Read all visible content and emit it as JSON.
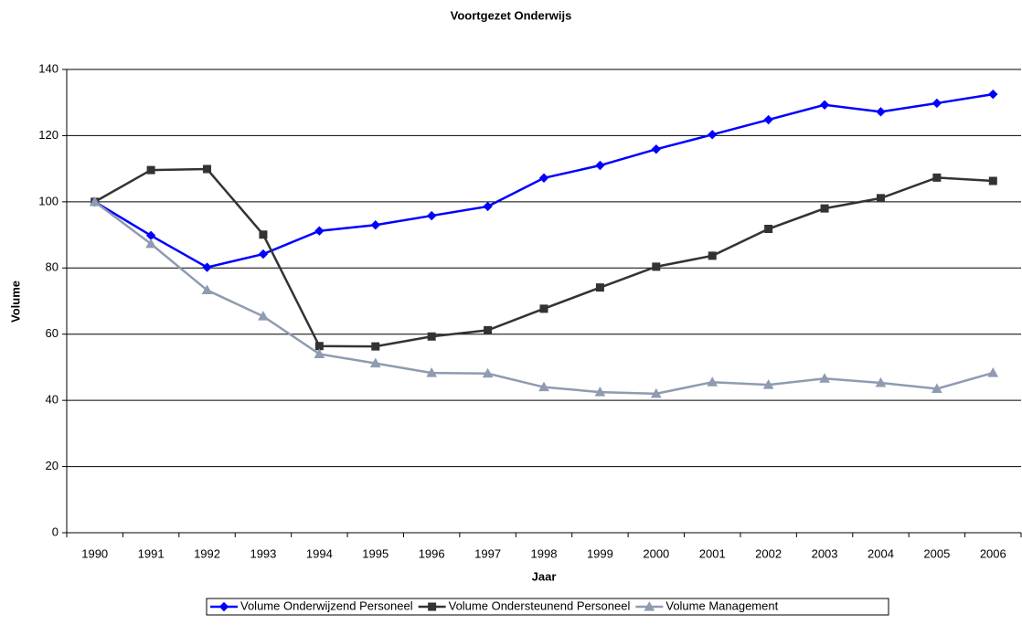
{
  "chart_data": {
    "type": "line",
    "title": "Voortgezet Onderwijs",
    "x_label": "Jaar",
    "y_label": "Volume",
    "categories": [
      "1990",
      "1991",
      "1992",
      "1993",
      "1994",
      "1995",
      "1996",
      "1997",
      "1998",
      "1999",
      "2000",
      "2001",
      "2002",
      "2003",
      "2004",
      "2005",
      "2006"
    ],
    "series": [
      {
        "name": "Volume Onderwijzend Personeel",
        "color": "#0000ff",
        "marker": "diamond",
        "values": [
          100,
          89.8,
          80.2,
          84.2,
          91.2,
          93,
          95.8,
          98.6,
          107.2,
          111,
          115.9,
          120.3,
          124.8,
          129.3,
          127.2,
          129.8,
          132.5
        ]
      },
      {
        "name": "Volume Ondersteunend Personeel",
        "color": "#333333",
        "marker": "square",
        "values": [
          100,
          109.6,
          109.9,
          90.1,
          56.4,
          56.3,
          59.3,
          61.2,
          67.7,
          74.1,
          80.4,
          83.7,
          91.8,
          98,
          101.1,
          107.3,
          106.3
        ]
      },
      {
        "name": "Volume Management",
        "color": "#8f9bb0",
        "marker": "triangle",
        "values": [
          100,
          87.3,
          73.3,
          65.4,
          54,
          51.2,
          48.3,
          48.1,
          44,
          42.5,
          42,
          45.5,
          44.7,
          46.6,
          45.3,
          43.5,
          48.3
        ]
      }
    ],
    "ylim": [
      0,
      140
    ],
    "yticks": [
      0,
      20,
      40,
      60,
      80,
      100,
      120,
      140
    ],
    "grid": true,
    "legend": "bottom"
  }
}
